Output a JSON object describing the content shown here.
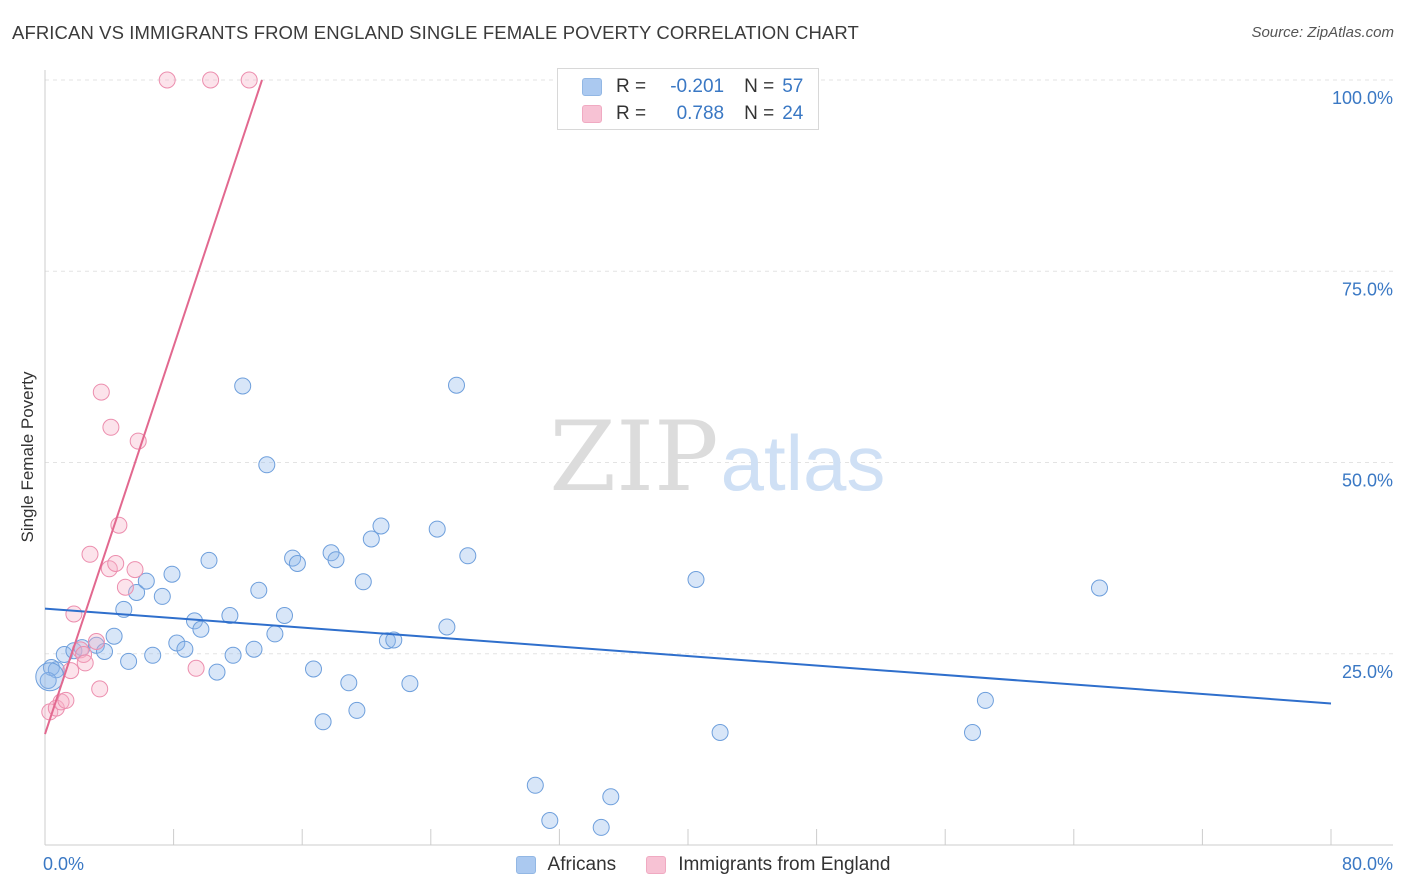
{
  "chart_data": {
    "type": "scatter",
    "title": "AFRICAN VS IMMIGRANTS FROM ENGLAND SINGLE FEMALE POVERTY CORRELATION CHART",
    "source": "Source: ZipAtlas.com",
    "xlabel": "",
    "ylabel": "Single Female Poverty",
    "xlim": [
      0,
      80
    ],
    "ylim": [
      0,
      102
    ],
    "x_tick_labels": [
      {
        "value": 0,
        "label": "0.0%"
      },
      {
        "value": 80,
        "label": "80.0%"
      }
    ],
    "y_tick_labels": [
      {
        "value": 25,
        "label": "25.0%"
      },
      {
        "value": 50,
        "label": "50.0%"
      },
      {
        "value": 75,
        "label": "75.0%"
      },
      {
        "value": 100,
        "label": "100.0%"
      }
    ],
    "x_minor_ticks": [
      0,
      8,
      16,
      24,
      32,
      40,
      48,
      56,
      64,
      72,
      80
    ],
    "grid": true,
    "watermark": {
      "zip": "ZIP",
      "atlas": "atlas"
    },
    "series": [
      {
        "name": "Africans",
        "color": "#8fb8ec",
        "stroke": "#6e9fdc",
        "line_color": "#2f6fcc",
        "R": "-0.201",
        "N": "57",
        "trend": {
          "x0": 0,
          "y0": 30.9,
          "x1": 80,
          "y1": 18.5
        },
        "points": [
          [
            0.4,
            23.2
          ],
          [
            0.7,
            22.9
          ],
          [
            1.2,
            24.9
          ],
          [
            1.8,
            25.4
          ],
          [
            2.3,
            25.8
          ],
          [
            3.2,
            26.1
          ],
          [
            3.7,
            25.3
          ],
          [
            4.3,
            27.3
          ],
          [
            4.9,
            30.8
          ],
          [
            5.2,
            24.0
          ],
          [
            5.7,
            33.0
          ],
          [
            6.3,
            34.5
          ],
          [
            6.7,
            24.8
          ],
          [
            7.3,
            32.5
          ],
          [
            7.9,
            35.4
          ],
          [
            8.2,
            26.4
          ],
          [
            8.7,
            25.6
          ],
          [
            9.3,
            29.3
          ],
          [
            9.7,
            28.2
          ],
          [
            10.2,
            37.2
          ],
          [
            10.7,
            22.6
          ],
          [
            11.5,
            30.0
          ],
          [
            11.7,
            24.8
          ],
          [
            12.3,
            60.0
          ],
          [
            13.0,
            25.6
          ],
          [
            13.3,
            33.3
          ],
          [
            13.8,
            49.7
          ],
          [
            14.3,
            27.6
          ],
          [
            14.9,
            30.0
          ],
          [
            15.4,
            37.5
          ],
          [
            15.7,
            36.8
          ],
          [
            16.7,
            23.0
          ],
          [
            17.3,
            16.1
          ],
          [
            17.8,
            38.2
          ],
          [
            18.1,
            37.3
          ],
          [
            18.9,
            21.2
          ],
          [
            19.4,
            17.6
          ],
          [
            19.8,
            34.4
          ],
          [
            20.3,
            40.0
          ],
          [
            20.9,
            41.7
          ],
          [
            21.3,
            26.7
          ],
          [
            21.7,
            26.8
          ],
          [
            22.7,
            21.1
          ],
          [
            24.4,
            41.3
          ],
          [
            25.0,
            28.5
          ],
          [
            25.6,
            60.1
          ],
          [
            26.3,
            37.8
          ],
          [
            30.5,
            7.8
          ],
          [
            31.4,
            3.2
          ],
          [
            34.6,
            2.3
          ],
          [
            35.2,
            6.3
          ],
          [
            40.5,
            34.7
          ],
          [
            42.0,
            14.7
          ],
          [
            57.7,
            14.7
          ],
          [
            58.5,
            18.9
          ],
          [
            65.6,
            33.6
          ],
          [
            0.2,
            21.5
          ]
        ]
      },
      {
        "name": "Immigrants from England",
        "color": "#f5aec6",
        "stroke": "#ec8eae",
        "line_color": "#e2688f",
        "R": "0.788",
        "N": "24",
        "trend": {
          "x0": 0,
          "y0": 14.5,
          "x1": 13.5,
          "y1": 100
        },
        "points": [
          [
            0.3,
            17.4
          ],
          [
            0.7,
            17.9
          ],
          [
            1.0,
            18.7
          ],
          [
            1.3,
            18.9
          ],
          [
            1.6,
            22.8
          ],
          [
            1.8,
            30.2
          ],
          [
            2.2,
            25.5
          ],
          [
            2.4,
            24.9
          ],
          [
            2.5,
            23.8
          ],
          [
            2.8,
            38.0
          ],
          [
            3.2,
            26.6
          ],
          [
            3.4,
            20.4
          ],
          [
            3.5,
            59.2
          ],
          [
            4.0,
            36.1
          ],
          [
            4.1,
            54.6
          ],
          [
            4.4,
            36.8
          ],
          [
            4.6,
            41.8
          ],
          [
            5.0,
            33.7
          ],
          [
            5.6,
            36.0
          ],
          [
            5.8,
            52.8
          ],
          [
            9.4,
            23.1
          ],
          [
            7.6,
            100
          ],
          [
            10.3,
            100
          ],
          [
            12.7,
            100
          ]
        ]
      }
    ]
  }
}
